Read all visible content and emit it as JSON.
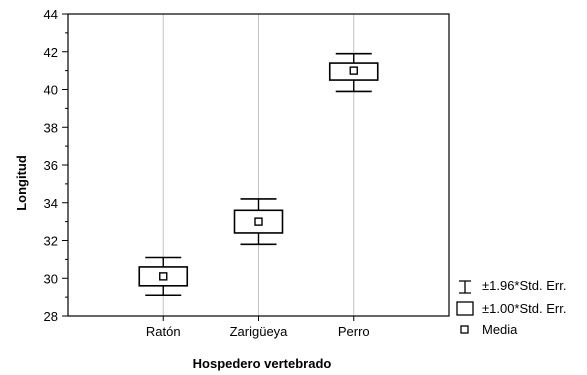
{
  "chart_data": {
    "type": "box",
    "xlabel": "Hospedero vertebrado",
    "ylabel": "Longitud",
    "ylim": [
      28,
      44
    ],
    "yticks": [
      "28",
      "30",
      "32",
      "34",
      "36",
      "38",
      "40",
      "42",
      "44"
    ],
    "categories": [
      "Ratón",
      "Zarigüeya",
      "Perro"
    ],
    "groups": [
      {
        "category": "Ratón",
        "mean": 30.1,
        "se_low": 29.6,
        "se_high": 30.6,
        "ci_low": 29.1,
        "ci_high": 31.1
      },
      {
        "category": "Zarigüeya",
        "mean": 33.0,
        "se_low": 32.4,
        "se_high": 33.6,
        "ci_low": 31.8,
        "ci_high": 34.2
      },
      {
        "category": "Perro",
        "mean": 41.0,
        "se_low": 40.5,
        "se_high": 41.4,
        "ci_low": 39.9,
        "ci_high": 41.9
      }
    ],
    "grid": {
      "vertical": true,
      "horizontal": false
    },
    "legend": {
      "position": "bottom-right",
      "items": [
        {
          "symbol": "whisker",
          "label": "±1.96*Std. Err."
        },
        {
          "symbol": "box",
          "label": "±1.00*Std. Err."
        },
        {
          "symbol": "mean",
          "label": "Media"
        }
      ]
    }
  }
}
